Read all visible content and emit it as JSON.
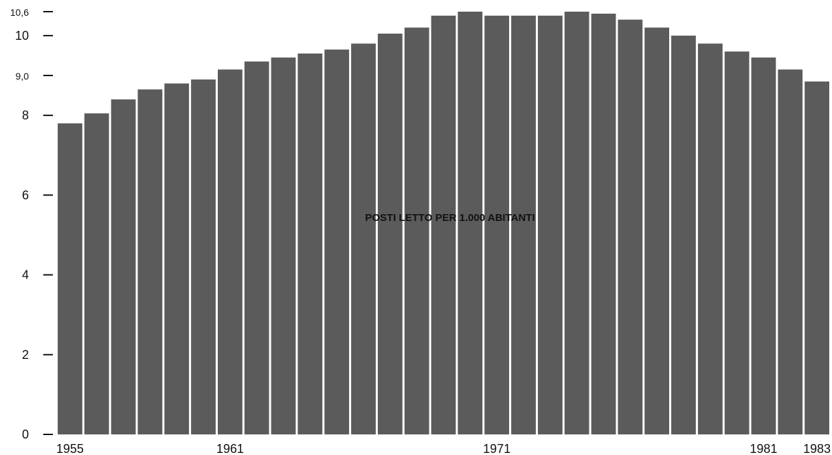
{
  "chart_data": {
    "type": "bar",
    "title": "",
    "xlabel": "",
    "ylabel": "",
    "annotation": "POSTI LETTO PER 1.000 ABITANTI",
    "ylim": [
      0,
      10.6
    ],
    "y_ticks": [
      {
        "value": 0,
        "label": "0"
      },
      {
        "value": 2,
        "label": "2"
      },
      {
        "value": 4,
        "label": "4"
      },
      {
        "value": 6,
        "label": "6"
      },
      {
        "value": 8,
        "label": "8"
      },
      {
        "value": 9,
        "label": "9,0"
      },
      {
        "value": 10,
        "label": "10"
      },
      {
        "value": 10.6,
        "label": "10,6"
      }
    ],
    "x_ticks": [
      {
        "year": 1955,
        "label": "1955"
      },
      {
        "year": 1961,
        "label": "1961"
      },
      {
        "year": 1971,
        "label": "1971"
      },
      {
        "year": 1981,
        "label": "1981"
      },
      {
        "year": 1983,
        "label": "1983"
      }
    ],
    "categories": [
      1955,
      1956,
      1957,
      1958,
      1959,
      1960,
      1961,
      1962,
      1963,
      1964,
      1965,
      1966,
      1967,
      1968,
      1969,
      1970,
      1971,
      1972,
      1973,
      1974,
      1975,
      1976,
      1977,
      1978,
      1979,
      1980,
      1981,
      1982,
      1983
    ],
    "values": [
      7.8,
      8.05,
      8.4,
      8.65,
      8.8,
      8.9,
      9.15,
      9.35,
      9.45,
      9.55,
      9.65,
      9.8,
      10.05,
      10.2,
      10.5,
      10.6,
      10.5,
      10.5,
      10.5,
      10.6,
      10.55,
      10.4,
      10.2,
      10.0,
      9.8,
      9.6,
      9.45,
      9.15,
      8.85
    ],
    "colors": {
      "bar": "#5b5b5b",
      "axis": "#111111",
      "background": "#ffffff"
    },
    "grid": false,
    "legend": "none"
  }
}
